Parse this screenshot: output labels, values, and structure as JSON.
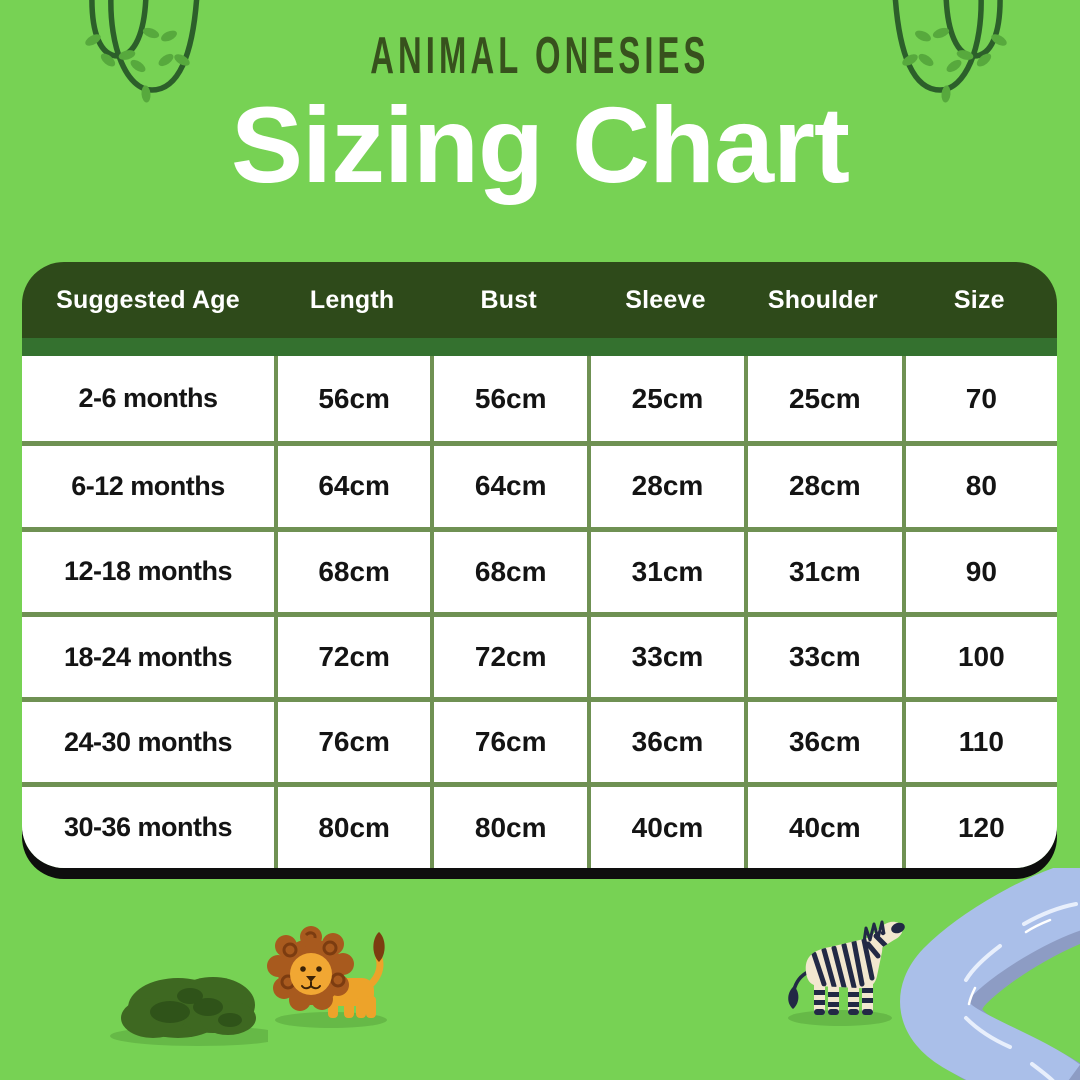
{
  "title": {
    "brand": "ANIMAL ONESIES",
    "main": "Sizing Chart"
  },
  "chart_data": {
    "type": "table",
    "title": "Sizing Chart",
    "subtitle": "ANIMAL ONESIES",
    "columns": [
      "Suggested Age",
      "Length",
      "Bust",
      "Sleeve",
      "Shoulder",
      "Size"
    ],
    "rows": [
      [
        "2-6 months",
        "56cm",
        "56cm",
        "25cm",
        "25cm",
        "70"
      ],
      [
        "6-12 months",
        "64cm",
        "64cm",
        "28cm",
        "28cm",
        "80"
      ],
      [
        "12-18 months",
        "68cm",
        "68cm",
        "31cm",
        "31cm",
        "90"
      ],
      [
        "18-24 months",
        "72cm",
        "72cm",
        "33cm",
        "33cm",
        "100"
      ],
      [
        "24-30 months",
        "76cm",
        "76cm",
        "36cm",
        "36cm",
        "110"
      ],
      [
        "30-36 months",
        "80cm",
        "80cm",
        "40cm",
        "40cm",
        "120"
      ]
    ]
  },
  "colors": {
    "background": "#77d254",
    "header_bg": "#2e4a1a",
    "band_bg": "#34712f",
    "grid_border": "#6f9153",
    "cell_bg": "#ffffff",
    "cell_text": "#141414",
    "header_text": "#ffffff",
    "title_text": "#ffffff",
    "brand_text": "#37511d",
    "card_shadow": "#0e0e0e",
    "vine_stroke": "#2c5f2a",
    "leaf_fill": "#57a93d",
    "bush_fill": "#3e6821",
    "lion_body": "#eda32a",
    "lion_mane": "#a85a1e",
    "zebra_body": "#f2e7cf",
    "zebra_stripe": "#222945",
    "river_fill": "#aabfe9",
    "river_shadow": "#8d9cc4"
  },
  "decorations": {
    "icons": [
      "vine-left-icon",
      "vine-right-icon",
      "bush-icon",
      "lion-icon",
      "zebra-icon",
      "river-icon"
    ]
  }
}
